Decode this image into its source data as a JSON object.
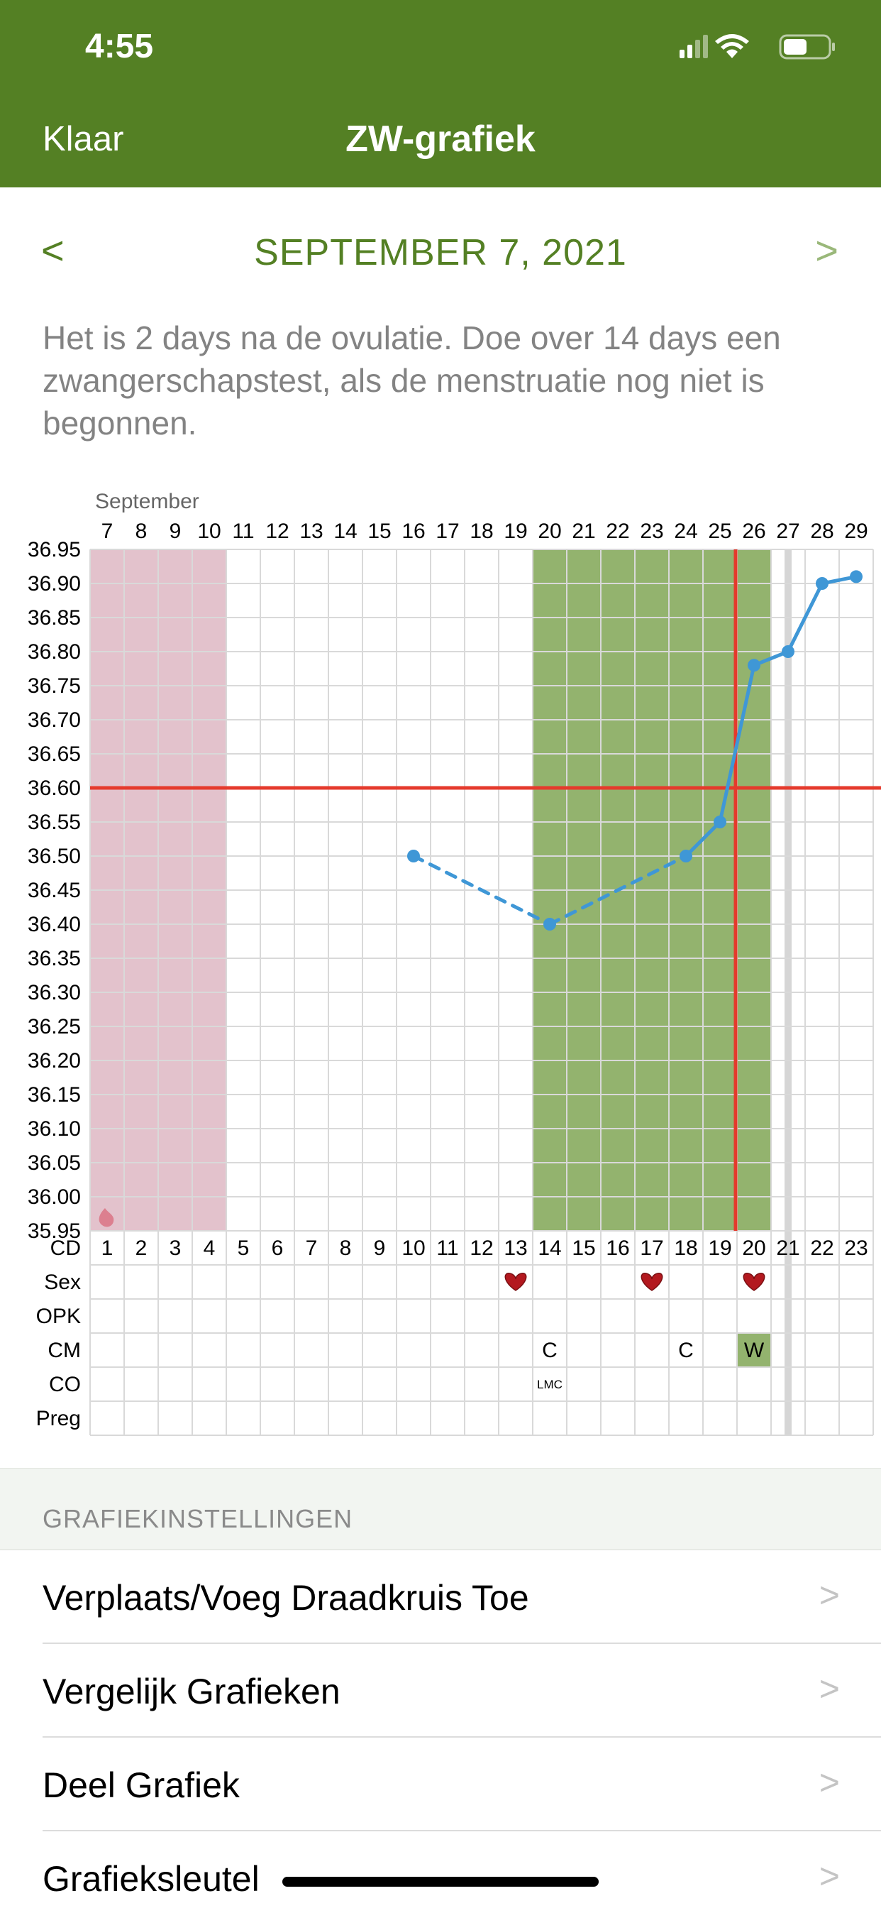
{
  "status_bar": {
    "time": "4:55"
  },
  "nav": {
    "done_label": "Klaar",
    "title": "ZW-grafiek"
  },
  "date_nav": {
    "prev": "<",
    "next": ">",
    "date": "SEPTEMBER 7, 2021"
  },
  "info_text": "Het is 2 days na de ovulatie. Doe over 14 days een zwangerschapstest, als de menstruatie nog niet is begonnen.",
  "chart_data": {
    "type": "line",
    "month_label": "September",
    "dates": [
      7,
      8,
      9,
      10,
      11,
      12,
      13,
      14,
      15,
      16,
      17,
      18,
      19,
      20,
      21,
      22,
      23,
      24,
      25,
      26,
      27,
      28,
      29
    ],
    "cycle_days": [
      1,
      2,
      3,
      4,
      5,
      6,
      7,
      8,
      9,
      10,
      11,
      12,
      13,
      14,
      15,
      16,
      17,
      18,
      19,
      20,
      21,
      22,
      23
    ],
    "y_ticks": [
      "36.95",
      "36.90",
      "36.85",
      "36.80",
      "36.75",
      "36.70",
      "36.65",
      "36.60",
      "36.55",
      "36.50",
      "36.45",
      "36.40",
      "36.35",
      "36.30",
      "36.25",
      "36.20",
      "36.15",
      "36.10",
      "36.05",
      "36.00",
      "35.95"
    ],
    "ylim": [
      35.95,
      36.95
    ],
    "coverline": 36.6,
    "ovulation_cd": 19,
    "today_cd": 21,
    "menstruation_cd": [
      1,
      4
    ],
    "fertile_window_cd": [
      14,
      20
    ],
    "temperatures": [
      {
        "cd": 10,
        "value": 36.5
      },
      {
        "cd": 14,
        "value": 36.4
      },
      {
        "cd": 18,
        "value": 36.5
      },
      {
        "cd": 19,
        "value": 36.55
      },
      {
        "cd": 20,
        "value": 36.78
      },
      {
        "cd": 21,
        "value": 36.8
      },
      {
        "cd": 22,
        "value": 36.9
      },
      {
        "cd": 23,
        "value": 36.91
      }
    ],
    "dashed_until_cd": 18,
    "row_labels": [
      "CD",
      "Sex",
      "OPK",
      "CM",
      "CO",
      "Preg"
    ],
    "sex_cd": [
      13,
      17,
      20
    ],
    "cm_marks": [
      {
        "cd": 14,
        "label": "C",
        "highlight": false
      },
      {
        "cd": 18,
        "label": "C",
        "highlight": false
      },
      {
        "cd": 20,
        "label": "W",
        "highlight": true
      }
    ],
    "co_marks": [
      {
        "cd": 14,
        "label": "LMC"
      }
    ],
    "colors": {
      "menstruation": "#e3c2cc",
      "fertile": "#93b36e",
      "line": "#3f97d6",
      "coverline": "#e53a2c",
      "today": "#d6d6d6",
      "heart": "#b3191f"
    }
  },
  "settings": {
    "title": "GRAFIEKINSTELLINGEN",
    "items": [
      {
        "label": "Verplaats/Voeg Draadkruis Toe"
      },
      {
        "label": "Vergelijk Grafieken"
      },
      {
        "label": "Deel Grafiek"
      },
      {
        "label": "Grafieksleutel"
      }
    ],
    "chevron": ">"
  }
}
